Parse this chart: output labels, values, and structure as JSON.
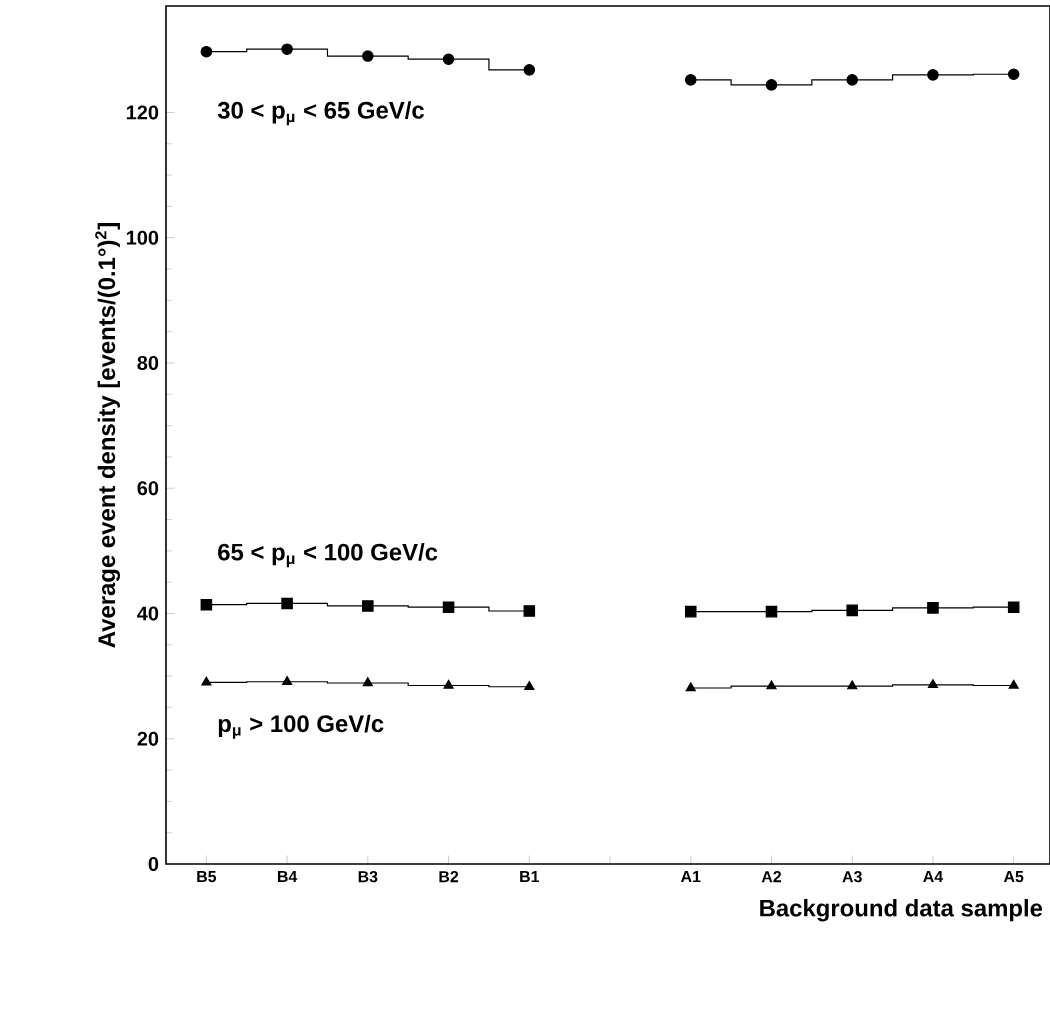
{
  "chart_data": {
    "type": "step",
    "xlabel": "Background data sample",
    "ylabel": "Average event density [events/(0.1°)$^{2}$]",
    "categories": [
      "B5",
      "B4",
      "B3",
      "B2",
      "B1",
      null,
      "A1",
      "A2",
      "A3",
      "A4",
      "A5"
    ],
    "ylim": [
      0,
      137
    ],
    "yticks": [
      0,
      20,
      40,
      60,
      80,
      100,
      120
    ],
    "grid": false,
    "series": [
      {
        "name": "30 < p$_{μ}$ < 65 GeV/c",
        "color": "#000000",
        "marker": "circle",
        "values": [
          129.7,
          130.1,
          129.0,
          128.5,
          126.8,
          null,
          125.2,
          124.4,
          125.2,
          126.0,
          126.1
        ]
      },
      {
        "name": "65 < p$_{μ}$ < 100 GeV/c",
        "color": "#000000",
        "marker": "square",
        "values": [
          41.4,
          41.6,
          41.2,
          41.0,
          40.4,
          null,
          40.3,
          40.3,
          40.5,
          40.9,
          41.0
        ]
      },
      {
        "name": "p$_{μ}$ > 100 GeV/c",
        "color": "#000000",
        "marker": "triangle",
        "values": [
          29.0,
          29.1,
          28.9,
          28.5,
          28.3,
          null,
          28.1,
          28.4,
          28.4,
          28.6,
          28.5
        ]
      }
    ]
  }
}
